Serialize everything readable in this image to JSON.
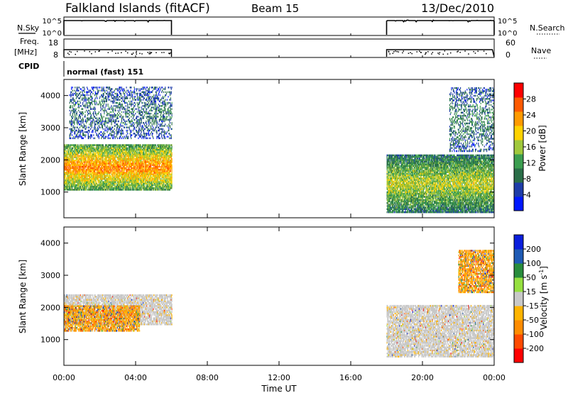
{
  "header": {
    "station": "Falkland Islands (fitACF)",
    "beam": "Beam 15",
    "date": "13/Dec/2010"
  },
  "left_labels": {
    "nsky": "N.Sky",
    "freq_line1": "Freq.",
    "freq_line2": "[MHz]",
    "cpid": "CPID"
  },
  "right_labels": {
    "nsearch": "N.Search",
    "nave": "Nave"
  },
  "cpid_text": "normal (fast) 151",
  "x_axis": {
    "title": "Time UT",
    "ticks": [
      {
        "t": 0,
        "label": "00:00"
      },
      {
        "t": 4,
        "label": "04:00"
      },
      {
        "t": 8,
        "label": "08:00"
      },
      {
        "t": 12,
        "label": "12:00"
      },
      {
        "t": 16,
        "label": "16:00"
      },
      {
        "t": 20,
        "label": "20:00"
      },
      {
        "t": 24,
        "label": "00:00"
      }
    ]
  },
  "nsky_axis": {
    "ticks": [
      "10^5",
      "10^0"
    ]
  },
  "nsearch_axis": {
    "ticks": [
      "10^5",
      "10^0"
    ]
  },
  "freq_axis": {
    "ticks": [
      "18",
      "8"
    ]
  },
  "nave_axis": {
    "ticks": [
      "60",
      "0"
    ]
  },
  "range_ticks": [
    1000,
    2000,
    3000,
    4000
  ],
  "range_limits": [
    200,
    4500
  ],
  "colors": {
    "power": [
      "#0018ff",
      "#1e3ca8",
      "#2a6e48",
      "#3c9e50",
      "#a0c83c",
      "#ffd200",
      "#ff9a00",
      "#ff5a00",
      "#ff0000"
    ],
    "velocity": [
      "#ff0000",
      "#ff4a00",
      "#ff8c00",
      "#ffb400",
      "#c8c8c8",
      "#96e040",
      "#288c3c",
      "#1e5ab4",
      "#0a1edc"
    ]
  },
  "chart_data": [
    {
      "type": "heatmap",
      "quantity": "Power",
      "unit": "dB",
      "ylabel": "Slant Range [km]",
      "xlabel": "Time UT",
      "xlim": [
        0,
        24
      ],
      "ylim": [
        200,
        4500
      ],
      "colorbar": {
        "label": "Power [dB]",
        "ticks": [
          "4",
          "8",
          "12",
          "16",
          "20",
          "24",
          "28"
        ],
        "range": [
          0,
          30
        ]
      },
      "data_intervals": [
        [
          0,
          6
        ],
        [
          18,
          24
        ]
      ],
      "features": [
        {
          "t0": 0,
          "t1": 6,
          "r0": 1100,
          "r1": 2500,
          "level": 0.8,
          "note": "strong echo band"
        },
        {
          "t0": 0.3,
          "t1": 6,
          "r0": 2700,
          "r1": 4300,
          "level": 0.25,
          "note": "weak far range scatter"
        },
        {
          "t0": 18,
          "t1": 24,
          "r0": 400,
          "r1": 2200,
          "level": 0.55,
          "note": "mixed echoes"
        },
        {
          "t0": 21.5,
          "t1": 24,
          "r0": 2300,
          "r1": 4300,
          "level": 0.3,
          "note": "weak far range scatter"
        }
      ]
    },
    {
      "type": "heatmap",
      "quantity": "Velocity",
      "unit": "m s^-1",
      "ylabel": "Slant Range [km]",
      "xlabel": "Time UT",
      "xlim": [
        0,
        24
      ],
      "ylim": [
        200,
        4500
      ],
      "colorbar": {
        "label_main": "Velocity [m s",
        "label_sup": "-1",
        "label_end": "]",
        "ticks": [
          "-200",
          "-100",
          "-50",
          "-15",
          "15",
          "50",
          "100",
          "200"
        ],
        "range": [
          -250,
          250
        ]
      },
      "data_intervals": [
        [
          0,
          6
        ],
        [
          18,
          24
        ]
      ],
      "features": [
        {
          "t0": 0,
          "t1": 6,
          "r0": 1500,
          "r1": 2450,
          "value": 0,
          "note": "ground scatter (grey)"
        },
        {
          "t0": 0,
          "t1": 4.2,
          "r0": 1300,
          "r1": 2100,
          "value": -40,
          "note": "negative velocity region"
        },
        {
          "t0": 18,
          "t1": 24,
          "r0": 500,
          "r1": 2100,
          "value": 0,
          "note": "ground scatter (grey)"
        },
        {
          "t0": 22,
          "t1": 24,
          "r0": 2500,
          "r1": 3800,
          "value": -40,
          "note": "negative velocity scatter"
        }
      ]
    }
  ]
}
